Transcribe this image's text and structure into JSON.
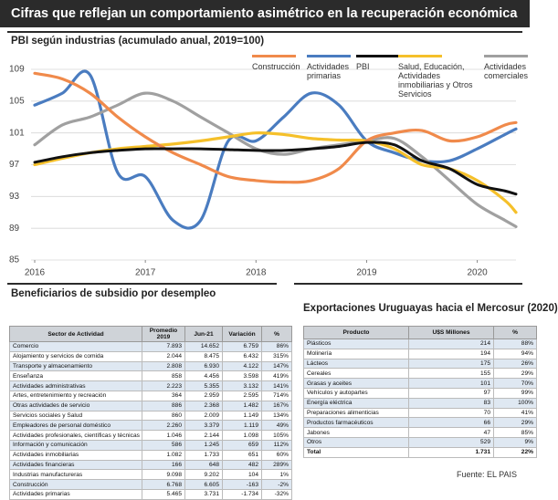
{
  "header": {
    "title": "Cifras que reflejan un comportamiento asimétrico en la recuperación económica"
  },
  "chart_data": {
    "type": "line",
    "title": "PBI según industrias (acumulado anual, 2019=100)",
    "x": [
      2016,
      2016.25,
      2016.5,
      2016.75,
      2017,
      2017.25,
      2017.5,
      2017.75,
      2018,
      2018.25,
      2018.5,
      2018.75,
      2019,
      2019.25,
      2019.5,
      2019.75,
      2020,
      2020.25,
      2020.35
    ],
    "xlim": [
      2016,
      2020.35
    ],
    "xticks": [
      2016,
      2017,
      2018,
      2019,
      2020
    ],
    "ylim": [
      85,
      109
    ],
    "yticks": [
      85,
      89,
      93,
      97,
      101,
      105,
      109
    ],
    "grid": true,
    "series": [
      {
        "name": "Construcción",
        "color": "#f08a4b",
        "values": [
          108.5,
          107.8,
          106,
          103,
          100.5,
          98.5,
          97,
          95.5,
          95,
          94.8,
          95,
          96.5,
          100,
          101,
          101.3,
          100,
          100.5,
          102,
          102.3
        ]
      },
      {
        "name": "Actividades primarias",
        "color": "#4a7cc0",
        "values": [
          104.5,
          106,
          108.3,
          96,
          95.5,
          90,
          90,
          100,
          100,
          103,
          106,
          104.5,
          100,
          98.5,
          97.5,
          97.5,
          99,
          100.8,
          101.5
        ]
      },
      {
        "name": "PBI",
        "color": "#111111",
        "values": [
          97.3,
          98,
          98.5,
          98.8,
          99,
          99,
          99,
          98.9,
          98.8,
          98.8,
          99,
          99.3,
          99.8,
          99.5,
          97.5,
          96.5,
          94.5,
          93.7,
          93.3
        ]
      },
      {
        "name": "Salud, Educación, Actividades inmobiliarias y Otros Servicios",
        "color": "#f5c02a",
        "values": [
          97,
          97.8,
          98.5,
          99,
          99.3,
          99.6,
          100,
          100.5,
          101,
          100.8,
          100.3,
          100.1,
          100,
          99,
          97,
          96.5,
          95,
          92.5,
          91
        ]
      },
      {
        "name": "Actividades comerciales",
        "color": "#a0a0a0",
        "values": [
          99.5,
          102,
          103,
          104.5,
          106,
          105,
          103,
          101,
          99,
          98.3,
          99,
          99.5,
          100,
          100.3,
          98,
          95,
          92,
          90,
          89.2
        ]
      }
    ]
  },
  "subsidy_table": {
    "title": "Beneficiarios de subsidio por desempleo",
    "columns": [
      "Sector de Actividad",
      "Promedio 2019",
      "Jun-21",
      "Variación",
      "%"
    ],
    "rows": [
      [
        "Comercio",
        "7.893",
        "14.652",
        "6.759",
        "86%"
      ],
      [
        "Alojamiento y servicios de comida",
        "2.044",
        "8.475",
        "6.432",
        "315%"
      ],
      [
        "Transporte y almacenamiento",
        "2.808",
        "6.930",
        "4.122",
        "147%"
      ],
      [
        "Enseñanza",
        "858",
        "4.456",
        "3.598",
        "419%"
      ],
      [
        "Actividades administrativas",
        "2.223",
        "5.355",
        "3.132",
        "141%"
      ],
      [
        "Artes, entretenimiento y recreación",
        "364",
        "2.959",
        "2.595",
        "714%"
      ],
      [
        "Otras actividades de servicio",
        "886",
        "2.368",
        "1.482",
        "167%"
      ],
      [
        "Servicios sociales y Salud",
        "860",
        "2.009",
        "1.149",
        "134%"
      ],
      [
        "Empleadores de personal doméstico",
        "2.260",
        "3.379",
        "1.119",
        "49%"
      ],
      [
        "Actividades profesionales, científicas y técnicas",
        "1.046",
        "2.144",
        "1.098",
        "105%"
      ],
      [
        "Información y comunicación",
        "586",
        "1.245",
        "659",
        "112%"
      ],
      [
        "Actividades inmobiliarias",
        "1.082",
        "1.733",
        "651",
        "60%"
      ],
      [
        "Actividades financieras",
        "166",
        "648",
        "482",
        "289%"
      ],
      [
        "Industrias manufactureras",
        "9.098",
        "9.202",
        "104",
        "1%"
      ],
      [
        "Construcción",
        "6.768",
        "6.605",
        "-163",
        "-2%"
      ],
      [
        "Actividades primarias",
        "5.465",
        "3.731",
        "-1.734",
        "-32%"
      ]
    ]
  },
  "exports_table": {
    "title": "Exportaciones Uruguayas hacia el Mercosur (2020)",
    "columns": [
      "Producto",
      "U$S Millones",
      "%"
    ],
    "rows": [
      [
        "Plásticos",
        "214",
        "88%"
      ],
      [
        "Molinería",
        "194",
        "94%"
      ],
      [
        "Lácteos",
        "175",
        "26%"
      ],
      [
        "Cereales",
        "155",
        "29%"
      ],
      [
        "Grasas y aceites",
        "101",
        "70%"
      ],
      [
        "Vehículos y autopartes",
        "97",
        "99%"
      ],
      [
        "Energía eléctrica",
        "83",
        "100%"
      ],
      [
        "Preparaciones alimenticias",
        "70",
        "41%"
      ],
      [
        "Productos farmacéuticos",
        "66",
        "29%"
      ],
      [
        "Jabones",
        "47",
        "85%"
      ],
      [
        "Otros",
        "529",
        "9%"
      ],
      [
        "Total",
        "1.731",
        "22%"
      ]
    ]
  },
  "source": "Fuente: EL PAIS"
}
